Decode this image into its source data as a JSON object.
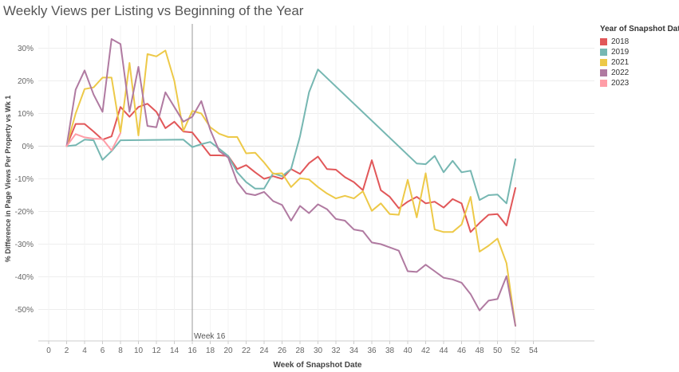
{
  "title": "Weekly Views per Listing vs Beginning of the Year",
  "chart_data": {
    "type": "line",
    "title": "Weekly Views per Listing vs Beginning of the Year",
    "xlabel": "Week of Snapshot Date",
    "ylabel": "% Difference in Page Views Per Property vs Wk 1",
    "xlim": [
      0,
      54
    ],
    "ylim": [
      -55,
      35
    ],
    "x_ticks": [
      0,
      2,
      4,
      6,
      8,
      10,
      12,
      14,
      16,
      18,
      20,
      22,
      24,
      26,
      28,
      30,
      32,
      34,
      36,
      38,
      40,
      42,
      44,
      46,
      48,
      50,
      52,
      54
    ],
    "y_ticks": [
      {
        "value": 30,
        "label": "30%"
      },
      {
        "value": 20,
        "label": "20%"
      },
      {
        "value": 10,
        "label": "10%"
      },
      {
        "value": 0,
        "label": "0%"
      },
      {
        "value": -10,
        "label": "-10%"
      },
      {
        "value": -20,
        "label": "-20%"
      },
      {
        "value": -30,
        "label": "-30%"
      },
      {
        "value": -40,
        "label": "-40%"
      },
      {
        "value": -50,
        "label": "-50%"
      }
    ],
    "grid": true,
    "legend_title": "Year of Snapshot Date",
    "legend_position": "top-right",
    "reference_line": {
      "x": 16,
      "label": "Week 16"
    },
    "series": [
      {
        "name": "2018",
        "color": "#e15759",
        "points": [
          [
            2,
            0
          ],
          [
            3,
            6.8
          ],
          [
            4,
            6.8
          ],
          [
            5,
            4.5
          ],
          [
            6,
            2
          ],
          [
            7,
            3
          ],
          [
            8,
            12
          ],
          [
            9,
            9
          ],
          [
            10,
            12
          ],
          [
            11,
            13
          ],
          [
            12,
            10.5
          ],
          [
            13,
            5.5
          ],
          [
            14,
            7.5
          ],
          [
            15,
            4.5
          ],
          [
            16,
            4.2
          ],
          [
            17,
            0.7
          ],
          [
            18,
            -2.8
          ],
          [
            19,
            -2.8
          ],
          [
            20,
            -3
          ],
          [
            21,
            -7
          ],
          [
            22,
            -5.8
          ],
          [
            23,
            -8
          ],
          [
            24,
            -10
          ],
          [
            25,
            -9.2
          ],
          [
            26,
            -10
          ],
          [
            27,
            -7
          ],
          [
            28,
            -8.5
          ],
          [
            29,
            -5.2
          ],
          [
            30,
            -3.2
          ],
          [
            31,
            -7
          ],
          [
            32,
            -7.2
          ],
          [
            33,
            -9.5
          ],
          [
            34,
            -11
          ],
          [
            35,
            -13.5
          ],
          [
            36,
            -4.3
          ],
          [
            37,
            -13.5
          ],
          [
            38,
            -15.5
          ],
          [
            39,
            -19
          ],
          [
            40,
            -17
          ],
          [
            41,
            -15.5
          ],
          [
            42,
            -17.5
          ],
          [
            43,
            -17
          ],
          [
            44,
            -18.8
          ],
          [
            45,
            -16.2
          ],
          [
            46,
            -17.5
          ],
          [
            47,
            -26.3
          ],
          [
            48,
            -23.5
          ],
          [
            49,
            -21
          ],
          [
            50,
            -20.8
          ],
          [
            51,
            -24.3
          ],
          [
            52,
            -12.8
          ]
        ]
      },
      {
        "name": "2019",
        "color": "#76b7b2",
        "points": [
          [
            2,
            0
          ],
          [
            3,
            0.3
          ],
          [
            4,
            2
          ],
          [
            5,
            1.8
          ],
          [
            6,
            -4.2
          ],
          [
            7,
            -1.5
          ],
          [
            8,
            1.8
          ],
          [
            11,
            1.9
          ],
          [
            15,
            2
          ],
          [
            16,
            -0.3
          ],
          [
            17,
            0.6
          ],
          [
            18,
            1.3
          ],
          [
            19,
            -0.8
          ],
          [
            20,
            -3
          ],
          [
            21,
            -8
          ],
          [
            22,
            -11
          ],
          [
            23,
            -13
          ],
          [
            24,
            -13
          ],
          [
            25,
            -8.3
          ],
          [
            26,
            -9.2
          ],
          [
            27,
            -7
          ],
          [
            28,
            3
          ],
          [
            29,
            16.5
          ],
          [
            30,
            23.5
          ],
          [
            41,
            -5.3
          ],
          [
            42,
            -5.5
          ],
          [
            43,
            -3
          ],
          [
            44,
            -8
          ],
          [
            45,
            -4.5
          ],
          [
            46,
            -8
          ],
          [
            47,
            -7.5
          ],
          [
            48,
            -16.5
          ],
          [
            49,
            -15
          ],
          [
            50,
            -14.8
          ],
          [
            51,
            -17.5
          ],
          [
            52,
            -4
          ]
        ]
      },
      {
        "name": "2021",
        "color": "#edc948",
        "points": [
          [
            2,
            0
          ],
          [
            3,
            10
          ],
          [
            4,
            17.5
          ],
          [
            5,
            18
          ],
          [
            6,
            21
          ],
          [
            7,
            21
          ],
          [
            8,
            4.2
          ],
          [
            9,
            25.5
          ],
          [
            10,
            3.3
          ],
          [
            11,
            28.2
          ],
          [
            12,
            27.5
          ],
          [
            13,
            29.3
          ],
          [
            14,
            20
          ],
          [
            15,
            4.7
          ],
          [
            16,
            10.8
          ],
          [
            17,
            10
          ],
          [
            18,
            5.8
          ],
          [
            19,
            3.8
          ],
          [
            20,
            2.8
          ],
          [
            21,
            2.8
          ],
          [
            22,
            -2.2
          ],
          [
            23,
            -2
          ],
          [
            24,
            -5
          ],
          [
            25,
            -8.5
          ],
          [
            26,
            -8.3
          ],
          [
            27,
            -12.5
          ],
          [
            28,
            -9.8
          ],
          [
            29,
            -10.2
          ],
          [
            30,
            -12.5
          ],
          [
            31,
            -14.5
          ],
          [
            32,
            -16
          ],
          [
            33,
            -15.2
          ],
          [
            34,
            -16
          ],
          [
            35,
            -13.8
          ],
          [
            36,
            -19.8
          ],
          [
            37,
            -17.5
          ],
          [
            38,
            -20.8
          ],
          [
            39,
            -21
          ],
          [
            40,
            -10.3
          ],
          [
            41,
            -21.8
          ],
          [
            42,
            -8.3
          ],
          [
            43,
            -25.5
          ],
          [
            44,
            -26.3
          ],
          [
            45,
            -26.3
          ],
          [
            46,
            -24
          ],
          [
            47,
            -15.5
          ],
          [
            48,
            -32.3
          ],
          [
            49,
            -30.5
          ],
          [
            50,
            -28.3
          ],
          [
            51,
            -35.8
          ],
          [
            52,
            -55
          ]
        ]
      },
      {
        "name": "2022",
        "color": "#b07aa1",
        "points": [
          [
            2,
            0
          ],
          [
            3,
            17.3
          ],
          [
            4,
            23.2
          ],
          [
            5,
            15.8
          ],
          [
            6,
            10.5
          ],
          [
            7,
            32.8
          ],
          [
            8,
            31.3
          ],
          [
            9,
            10.5
          ],
          [
            10,
            24.3
          ],
          [
            11,
            6.2
          ],
          [
            12,
            5.8
          ],
          [
            13,
            16.5
          ],
          [
            14,
            12
          ],
          [
            15,
            7.5
          ],
          [
            16,
            9
          ],
          [
            17,
            13.8
          ],
          [
            18,
            5
          ],
          [
            19,
            -1.5
          ],
          [
            20,
            -3.5
          ],
          [
            21,
            -11
          ],
          [
            22,
            -14.5
          ],
          [
            23,
            -15
          ],
          [
            24,
            -14
          ],
          [
            25,
            -16.8
          ],
          [
            26,
            -18
          ],
          [
            27,
            -22.8
          ],
          [
            28,
            -18.3
          ],
          [
            29,
            -20.5
          ],
          [
            30,
            -17.8
          ],
          [
            31,
            -19.3
          ],
          [
            32,
            -22.3
          ],
          [
            33,
            -22.8
          ],
          [
            34,
            -25.5
          ],
          [
            35,
            -26
          ],
          [
            36,
            -29.5
          ],
          [
            37,
            -30
          ],
          [
            38,
            -31
          ],
          [
            39,
            -32
          ],
          [
            40,
            -38.3
          ],
          [
            41,
            -38.5
          ],
          [
            42,
            -36.3
          ],
          [
            43,
            -38.3
          ],
          [
            44,
            -40.3
          ],
          [
            45,
            -40.8
          ],
          [
            46,
            -41.8
          ],
          [
            47,
            -45.3
          ],
          [
            48,
            -50.3
          ],
          [
            49,
            -47.3
          ],
          [
            50,
            -46.8
          ],
          [
            51,
            -39.8
          ],
          [
            52,
            -55
          ]
        ]
      },
      {
        "name": "2023",
        "color": "#ff9da7",
        "points": [
          [
            2,
            0
          ],
          [
            3,
            3.7
          ],
          [
            4,
            2.7
          ],
          [
            5,
            2.3
          ],
          [
            6,
            2.2
          ],
          [
            7,
            -1.3
          ],
          [
            8,
            4
          ]
        ]
      }
    ]
  }
}
